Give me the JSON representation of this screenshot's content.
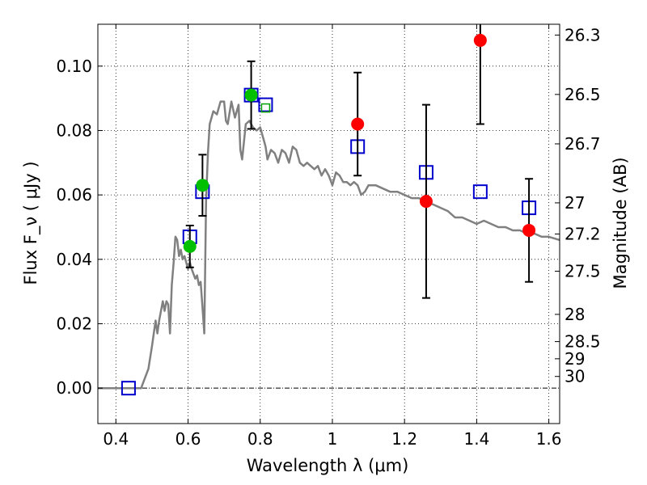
{
  "chart_data": {
    "type": "scatter",
    "title": "",
    "xlabel": "Wavelength  λ (μm)",
    "ylabel_left": "Flux  F_ν  ( μJy )",
    "ylabel_right": "Magnitude (AB)",
    "xlim": [
      0.35,
      1.63
    ],
    "ylim": [
      -0.011,
      0.113
    ],
    "grid": true,
    "xticks": [
      0.4,
      0.6,
      0.8,
      1.0,
      1.2,
      1.4,
      1.6
    ],
    "xtick_labels": [
      "0.4",
      "0.6",
      "0.8",
      "1",
      "1.2",
      "1.4",
      "1.6"
    ],
    "yticks": [
      0.0,
      0.02,
      0.04,
      0.06,
      0.08,
      0.1
    ],
    "ytick_labels": [
      "0.00",
      "0.02",
      "0.04",
      "0.06",
      "0.08",
      "0.10"
    ],
    "right_ticks": [
      {
        "label": "26.3",
        "mag": 26.3
      },
      {
        "label": "26.5",
        "mag": 26.5
      },
      {
        "label": "26.7",
        "mag": 26.7
      },
      {
        "label": "27",
        "mag": 27.0
      },
      {
        "label": "27.2",
        "mag": 27.2
      },
      {
        "label": "27.5",
        "mag": 27.5
      },
      {
        "label": "28",
        "mag": 28.0
      },
      {
        "label": "28.5",
        "mag": 28.5
      },
      {
        "label": "29",
        "mag": 29.0
      },
      {
        "label": "30",
        "mag": 30.0
      }
    ],
    "colors": {
      "model": "#808080",
      "red_points": "#ff0000",
      "green_points": "#00c000",
      "blue_squares": "#0000cc",
      "green_square": "#00a000",
      "errorbar": "#000000"
    },
    "series": [
      {
        "kind": "line",
        "points": [
          [
            0.35,
            0.0
          ],
          [
            0.47,
            0.0
          ],
          [
            0.48,
            0.003
          ],
          [
            0.49,
            0.006
          ],
          [
            0.5,
            0.013
          ],
          [
            0.51,
            0.021
          ],
          [
            0.515,
            0.017
          ],
          [
            0.52,
            0.021
          ],
          [
            0.53,
            0.027
          ],
          [
            0.535,
            0.024
          ],
          [
            0.54,
            0.027
          ],
          [
            0.545,
            0.026
          ],
          [
            0.55,
            0.017
          ],
          [
            0.555,
            0.032
          ],
          [
            0.56,
            0.039
          ],
          [
            0.565,
            0.047
          ],
          [
            0.57,
            0.046
          ],
          [
            0.575,
            0.041
          ],
          [
            0.58,
            0.043
          ],
          [
            0.585,
            0.04
          ],
          [
            0.59,
            0.041
          ],
          [
            0.6,
            0.037
          ],
          [
            0.605,
            0.039
          ],
          [
            0.61,
            0.037
          ],
          [
            0.62,
            0.034
          ],
          [
            0.625,
            0.035
          ],
          [
            0.63,
            0.032
          ],
          [
            0.635,
            0.033
          ],
          [
            0.64,
            0.025
          ],
          [
            0.645,
            0.017
          ],
          [
            0.65,
            0.058
          ],
          [
            0.655,
            0.073
          ],
          [
            0.66,
            0.082
          ],
          [
            0.67,
            0.086
          ],
          [
            0.68,
            0.085
          ],
          [
            0.69,
            0.089
          ],
          [
            0.7,
            0.089
          ],
          [
            0.705,
            0.083
          ],
          [
            0.71,
            0.082
          ],
          [
            0.72,
            0.089
          ],
          [
            0.73,
            0.084
          ],
          [
            0.74,
            0.088
          ],
          [
            0.745,
            0.074
          ],
          [
            0.75,
            0.071
          ],
          [
            0.76,
            0.082
          ],
          [
            0.77,
            0.083
          ],
          [
            0.78,
            0.081
          ],
          [
            0.79,
            0.08
          ],
          [
            0.8,
            0.081
          ],
          [
            0.81,
            0.077
          ],
          [
            0.815,
            0.075
          ],
          [
            0.82,
            0.071
          ],
          [
            0.83,
            0.074
          ],
          [
            0.84,
            0.073
          ],
          [
            0.85,
            0.07
          ],
          [
            0.86,
            0.074
          ],
          [
            0.87,
            0.073
          ],
          [
            0.88,
            0.07
          ],
          [
            0.89,
            0.075
          ],
          [
            0.9,
            0.074
          ],
          [
            0.91,
            0.07
          ],
          [
            0.92,
            0.069
          ],
          [
            0.93,
            0.07
          ],
          [
            0.95,
            0.068
          ],
          [
            0.96,
            0.069
          ],
          [
            0.97,
            0.066
          ],
          [
            0.98,
            0.068
          ],
          [
            0.99,
            0.066
          ],
          [
            1.0,
            0.063
          ],
          [
            1.01,
            0.067
          ],
          [
            1.02,
            0.066
          ],
          [
            1.03,
            0.064
          ],
          [
            1.04,
            0.064
          ],
          [
            1.05,
            0.063
          ],
          [
            1.06,
            0.064
          ],
          [
            1.07,
            0.063
          ],
          [
            1.08,
            0.06
          ],
          [
            1.09,
            0.061
          ],
          [
            1.1,
            0.063
          ],
          [
            1.12,
            0.063
          ],
          [
            1.14,
            0.062
          ],
          [
            1.16,
            0.061
          ],
          [
            1.18,
            0.061
          ],
          [
            1.2,
            0.06
          ],
          [
            1.22,
            0.059
          ],
          [
            1.24,
            0.059
          ],
          [
            1.26,
            0.058
          ],
          [
            1.28,
            0.057
          ],
          [
            1.3,
            0.056
          ],
          [
            1.32,
            0.055
          ],
          [
            1.34,
            0.053
          ],
          [
            1.36,
            0.053
          ],
          [
            1.38,
            0.052
          ],
          [
            1.4,
            0.051
          ],
          [
            1.42,
            0.052
          ],
          [
            1.44,
            0.051
          ],
          [
            1.46,
            0.05
          ],
          [
            1.48,
            0.05
          ],
          [
            1.5,
            0.049
          ],
          [
            1.52,
            0.049
          ],
          [
            1.54,
            0.048
          ],
          [
            1.56,
            0.048
          ],
          [
            1.58,
            0.047
          ],
          [
            1.6,
            0.047
          ],
          [
            1.63,
            0.046
          ]
        ]
      },
      {
        "kind": "squares",
        "points": [
          [
            0.435,
            0.0
          ],
          [
            0.605,
            0.047
          ],
          [
            0.64,
            0.061
          ],
          [
            0.775,
            0.091
          ],
          [
            0.815,
            0.088
          ],
          [
            1.07,
            0.075
          ],
          [
            1.26,
            0.067
          ],
          [
            1.41,
            0.061
          ],
          [
            1.545,
            0.056
          ]
        ]
      },
      {
        "kind": "square_green",
        "points": [
          [
            0.815,
            0.087
          ]
        ]
      },
      {
        "kind": "circles_green",
        "points": [
          [
            0.605,
            0.044
          ],
          [
            0.64,
            0.063
          ],
          [
            0.775,
            0.091
          ]
        ],
        "errors": [
          0.0065,
          0.0095,
          0.0105
        ]
      },
      {
        "kind": "circles_red",
        "points": [
          [
            1.07,
            0.082
          ],
          [
            1.26,
            0.058
          ],
          [
            1.41,
            0.108
          ],
          [
            1.545,
            0.049
          ]
        ],
        "errors": [
          0.016,
          0.03,
          0.026,
          0.016
        ]
      }
    ]
  }
}
